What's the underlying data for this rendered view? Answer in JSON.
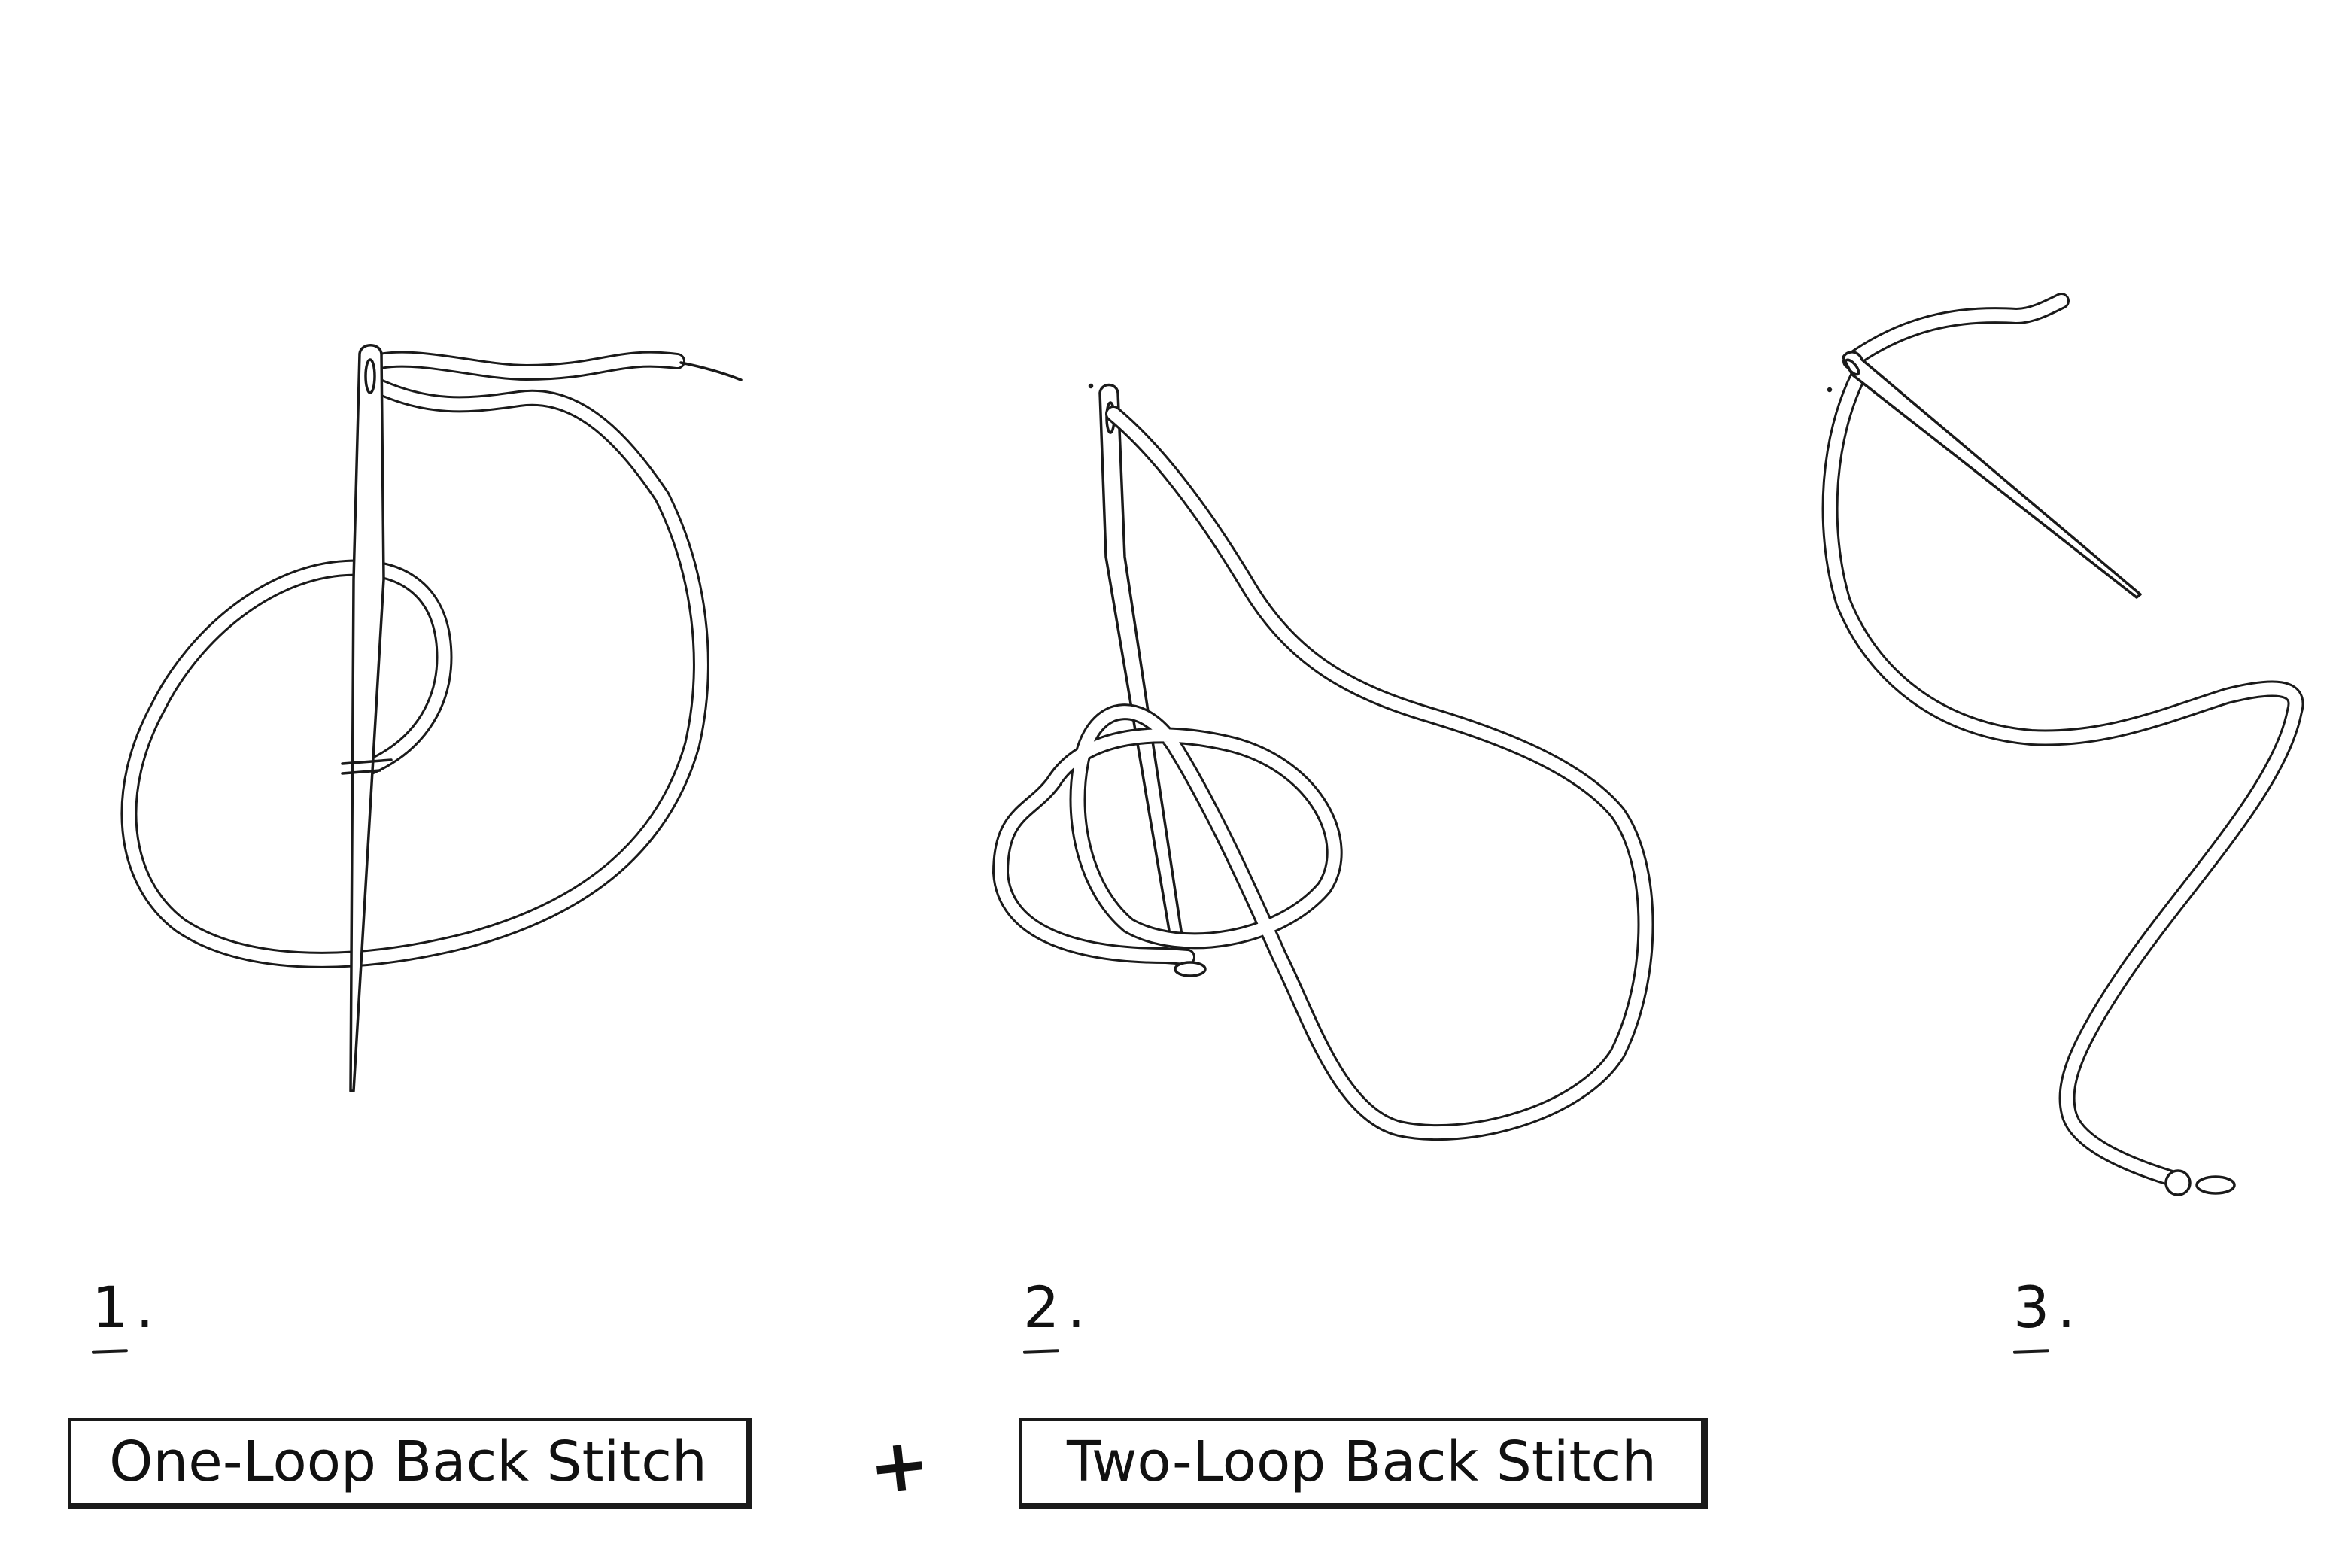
{
  "steps": [
    {
      "number": "1."
    },
    {
      "number": "2."
    },
    {
      "number": "3."
    }
  ],
  "labels": {
    "one_loop": "One-Loop Back Stitch",
    "two_loop": "Two-Loop Back Stitch",
    "plus": "+"
  },
  "colors": {
    "ink": "#1a1a1a",
    "background": "#ffffff"
  },
  "icons": [
    "needle-icon",
    "thread-icon",
    "knot-icon"
  ]
}
